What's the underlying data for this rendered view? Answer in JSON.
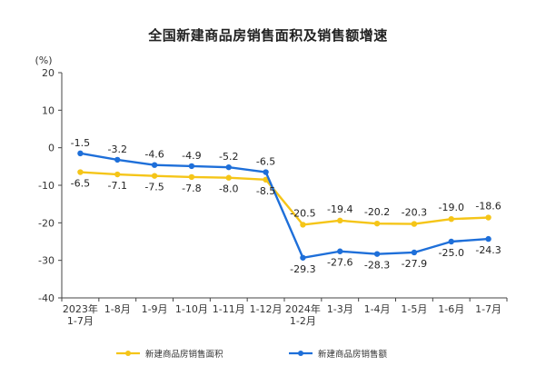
{
  "chart_data": {
    "type": "line",
    "title": "全国新建商品房销售面积及销售额增速",
    "ylabel": "(%)",
    "ylim": [
      -40,
      20
    ],
    "yticks": [
      20,
      10,
      0,
      -10,
      -20,
      -30,
      -40
    ],
    "categories": [
      "2023年\n1-7月",
      "1-8月",
      "1-9月",
      "1-10月",
      "1-11月",
      "1-12月",
      "2024年\n1-2月",
      "1-3月",
      "1-4月",
      "1-5月",
      "1-6月",
      "1-7月"
    ],
    "series": [
      {
        "name": "新建商品房销售面积",
        "color": "#F5C518",
        "values": [
          -6.5,
          -7.1,
          -7.5,
          -7.8,
          -8.0,
          -8.5,
          -20.5,
          -19.4,
          -20.2,
          -20.3,
          -19.0,
          -18.6
        ],
        "labels": [
          "-6.5",
          "-7.1",
          "-7.5",
          "-7.8",
          "-8.0",
          "-8.5",
          "-20.5",
          "-19.4",
          "-20.2",
          "-20.3",
          "-19.0",
          "-18.6"
        ]
      },
      {
        "name": "新建商品房销售额",
        "color": "#1E6FD9",
        "values": [
          -1.5,
          -3.2,
          -4.6,
          -4.9,
          -5.2,
          -6.5,
          -29.3,
          -27.6,
          -28.3,
          -27.9,
          -25.0,
          -24.3
        ],
        "labels": [
          "-1.5",
          "-3.2",
          "-4.6",
          "-4.9",
          "-5.2",
          "-6.5",
          "-29.3",
          "-27.6",
          "-28.3",
          "-27.9",
          "-25.0",
          "-24.3"
        ]
      }
    ],
    "grid": false,
    "legend": "bottom"
  }
}
